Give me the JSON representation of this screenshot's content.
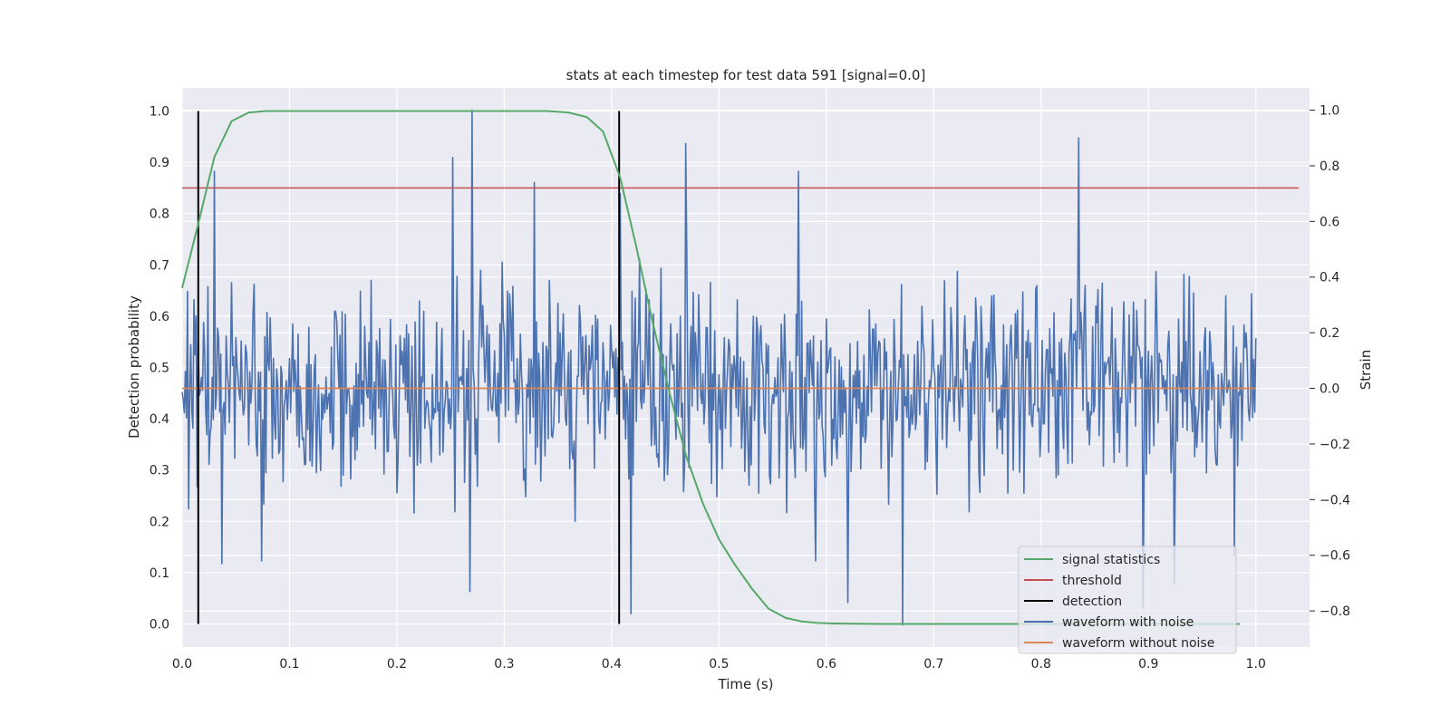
{
  "chart_data": {
    "type": "line",
    "title": "stats at each timestep for test data 591 [signal=0.0]",
    "xlabel": "Time (s)",
    "ylabel_left": "Detection probability",
    "ylabel_right": "Strain",
    "xlim": [
      0.0,
      1.05
    ],
    "ylim_left": [
      -0.045,
      1.045
    ],
    "ylim_right": [
      -0.93,
      1.08
    ],
    "x_ticks": [
      "0.0",
      "0.1",
      "0.2",
      "0.3",
      "0.4",
      "0.5",
      "0.6",
      "0.7",
      "0.8",
      "0.9",
      "1.0"
    ],
    "y_left_ticks": [
      "0.0",
      "0.1",
      "0.2",
      "0.3",
      "0.4",
      "0.5",
      "0.6",
      "0.7",
      "0.8",
      "0.9",
      "1.0"
    ],
    "y_right_ticks": [
      "−0.8",
      "−0.6",
      "−0.4",
      "−0.2",
      "0.0",
      "0.2",
      "0.4",
      "0.6",
      "0.8",
      "1.0"
    ],
    "y_right_tick_values": [
      -0.8,
      -0.6,
      -0.4,
      -0.2,
      0.0,
      0.2,
      0.4,
      0.6,
      0.8,
      1.0
    ],
    "grid": true,
    "legend_position": "lower-right",
    "series": [
      {
        "name": "signal statistics",
        "axis": "left",
        "color": "#55a868",
        "x": [
          0.0,
          0.015,
          0.03,
          0.046,
          0.062,
          0.078,
          0.1,
          0.15,
          0.2,
          0.25,
          0.3,
          0.34,
          0.36,
          0.377,
          0.392,
          0.408,
          0.423,
          0.438,
          0.454,
          0.469,
          0.485,
          0.5,
          0.515,
          0.531,
          0.546,
          0.562,
          0.577,
          0.592,
          0.608,
          0.65,
          0.7,
          0.75,
          0.8,
          0.85,
          0.9,
          0.95,
          0.985
        ],
        "values": [
          0.655,
          0.78,
          0.91,
          0.98,
          0.997,
          1.0,
          1.0,
          1.0,
          1.0,
          1.0,
          1.0,
          1.0,
          0.997,
          0.988,
          0.96,
          0.87,
          0.735,
          0.59,
          0.45,
          0.33,
          0.235,
          0.165,
          0.115,
          0.068,
          0.03,
          0.012,
          0.005,
          0.002,
          0.001,
          0.0,
          0.0,
          0.0,
          0.0,
          0.0,
          0.0,
          0.0,
          0.0
        ]
      },
      {
        "name": "threshold",
        "axis": "left",
        "color": "#c44e52",
        "x": [
          0.0,
          1.04
        ],
        "values": [
          0.85,
          0.85
        ]
      },
      {
        "name": "detection",
        "axis": "left",
        "color": "#000000",
        "vlines_x": [
          0.015,
          0.407
        ],
        "ymin": 0.0,
        "ymax": 1.0
      },
      {
        "name": "waveform with noise",
        "axis": "right",
        "color": "#4c72b0",
        "x_range": [
          0.0,
          1.0
        ],
        "n_samples": 1000,
        "min": -0.85,
        "max": 1.0,
        "peaks": [
          {
            "x": 0.03,
            "y": 0.78
          },
          {
            "x": 0.037,
            "y": -0.63
          },
          {
            "x": 0.074,
            "y": -0.62
          },
          {
            "x": 0.252,
            "y": 0.83
          },
          {
            "x": 0.268,
            "y": -0.73
          },
          {
            "x": 0.27,
            "y": 1.0
          },
          {
            "x": 0.328,
            "y": 0.74
          },
          {
            "x": 0.408,
            "y": 0.7
          },
          {
            "x": 0.418,
            "y": -0.81
          },
          {
            "x": 0.469,
            "y": 0.88
          },
          {
            "x": 0.574,
            "y": 0.78
          },
          {
            "x": 0.59,
            "y": -0.62
          },
          {
            "x": 0.62,
            "y": -0.77
          },
          {
            "x": 0.671,
            "y": -0.85
          },
          {
            "x": 0.835,
            "y": 0.9
          },
          {
            "x": 0.895,
            "y": -0.79
          },
          {
            "x": 0.924,
            "y": -0.7
          },
          {
            "x": 0.98,
            "y": -0.6
          }
        ]
      },
      {
        "name": "waveform without noise",
        "axis": "right",
        "color": "#dd8452",
        "x": [
          0.0,
          1.0
        ],
        "values": [
          0.0,
          0.0
        ]
      }
    ]
  }
}
